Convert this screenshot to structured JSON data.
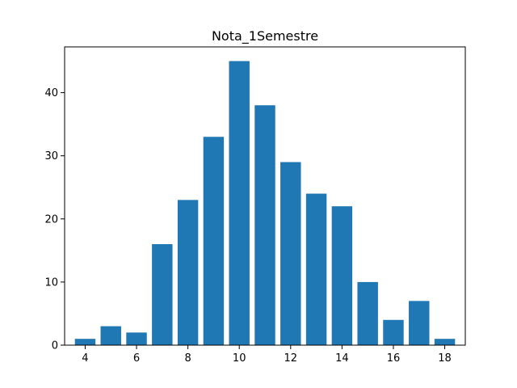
{
  "chart_data": {
    "type": "bar",
    "title": "Nota_1Semestre",
    "xlabel": "",
    "ylabel": "",
    "x": [
      4,
      5,
      6,
      7,
      8,
      9,
      10,
      11,
      12,
      13,
      14,
      15,
      16,
      17,
      18
    ],
    "values": [
      1,
      3,
      2,
      16,
      23,
      33,
      45,
      38,
      29,
      24,
      22,
      10,
      4,
      7,
      1
    ],
    "xlim": [
      3.2,
      18.8
    ],
    "ylim": [
      0,
      47.25
    ],
    "x_ticks": [
      4,
      6,
      8,
      10,
      12,
      14,
      16,
      18
    ],
    "y_ticks": [
      0,
      10,
      20,
      30,
      40
    ],
    "bar_color": "#1f77b4",
    "grid": false
  }
}
